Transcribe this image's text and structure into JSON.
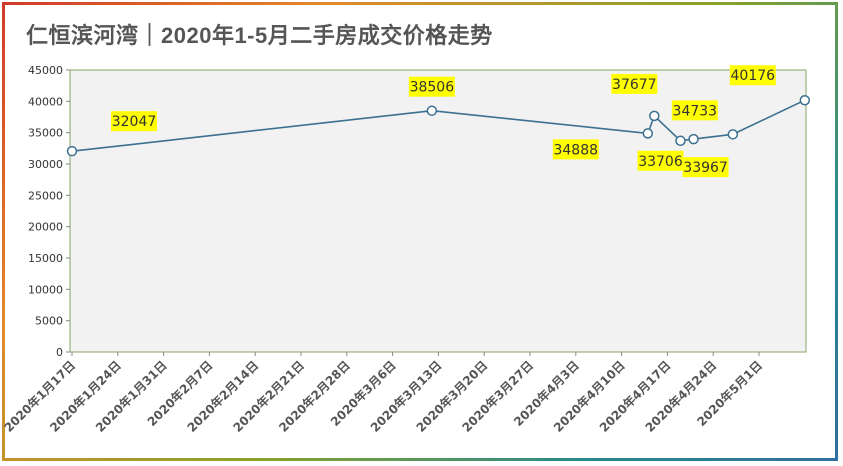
{
  "title": "仁恒滨河湾｜2020年1-5月二手房成交价格走势",
  "colors": {
    "line": "#3c7091",
    "label_bg": "#ffff00",
    "plot_bg": "#f2f2f2"
  },
  "chart_data": {
    "type": "line",
    "title": "仁恒滨河湾｜2020年1-5月二手房成交价格走势",
    "xlabel": "",
    "ylabel": "",
    "ylim": [
      0,
      45000
    ],
    "yticks": [
      0,
      5000,
      10000,
      15000,
      20000,
      25000,
      30000,
      35000,
      40000,
      45000
    ],
    "xticks": [
      "2020年1月17日",
      "2020年1月24日",
      "2020年1月31日",
      "2020年2月7日",
      "2020年2月14日",
      "2020年2月21日",
      "2020年2月28日",
      "2020年3月6日",
      "2020年3月13日",
      "2020年3月20日",
      "2020年3月27日",
      "2020年4月3日",
      "2020年4月10日",
      "2020年4月17日",
      "2020年4月24日",
      "2020年5月1日"
    ],
    "grid": false,
    "legend": "none",
    "series": [
      {
        "points": [
          {
            "x": "2020-01-17",
            "y": 32047,
            "label": "32047"
          },
          {
            "x": "2020-03-12",
            "y": 38506,
            "label": "38506"
          },
          {
            "x": "2020-04-14",
            "y": 34888,
            "label": "34888"
          },
          {
            "x": "2020-04-15",
            "y": 37677,
            "label": "37677"
          },
          {
            "x": "2020-04-19",
            "y": 33706,
            "label": "33706"
          },
          {
            "x": "2020-04-21",
            "y": 33967,
            "label": "33967"
          },
          {
            "x": "2020-04-27",
            "y": 34733,
            "label": "34733"
          },
          {
            "x": "2020-05-08",
            "y": 40176,
            "label": "40176"
          }
        ]
      }
    ]
  }
}
